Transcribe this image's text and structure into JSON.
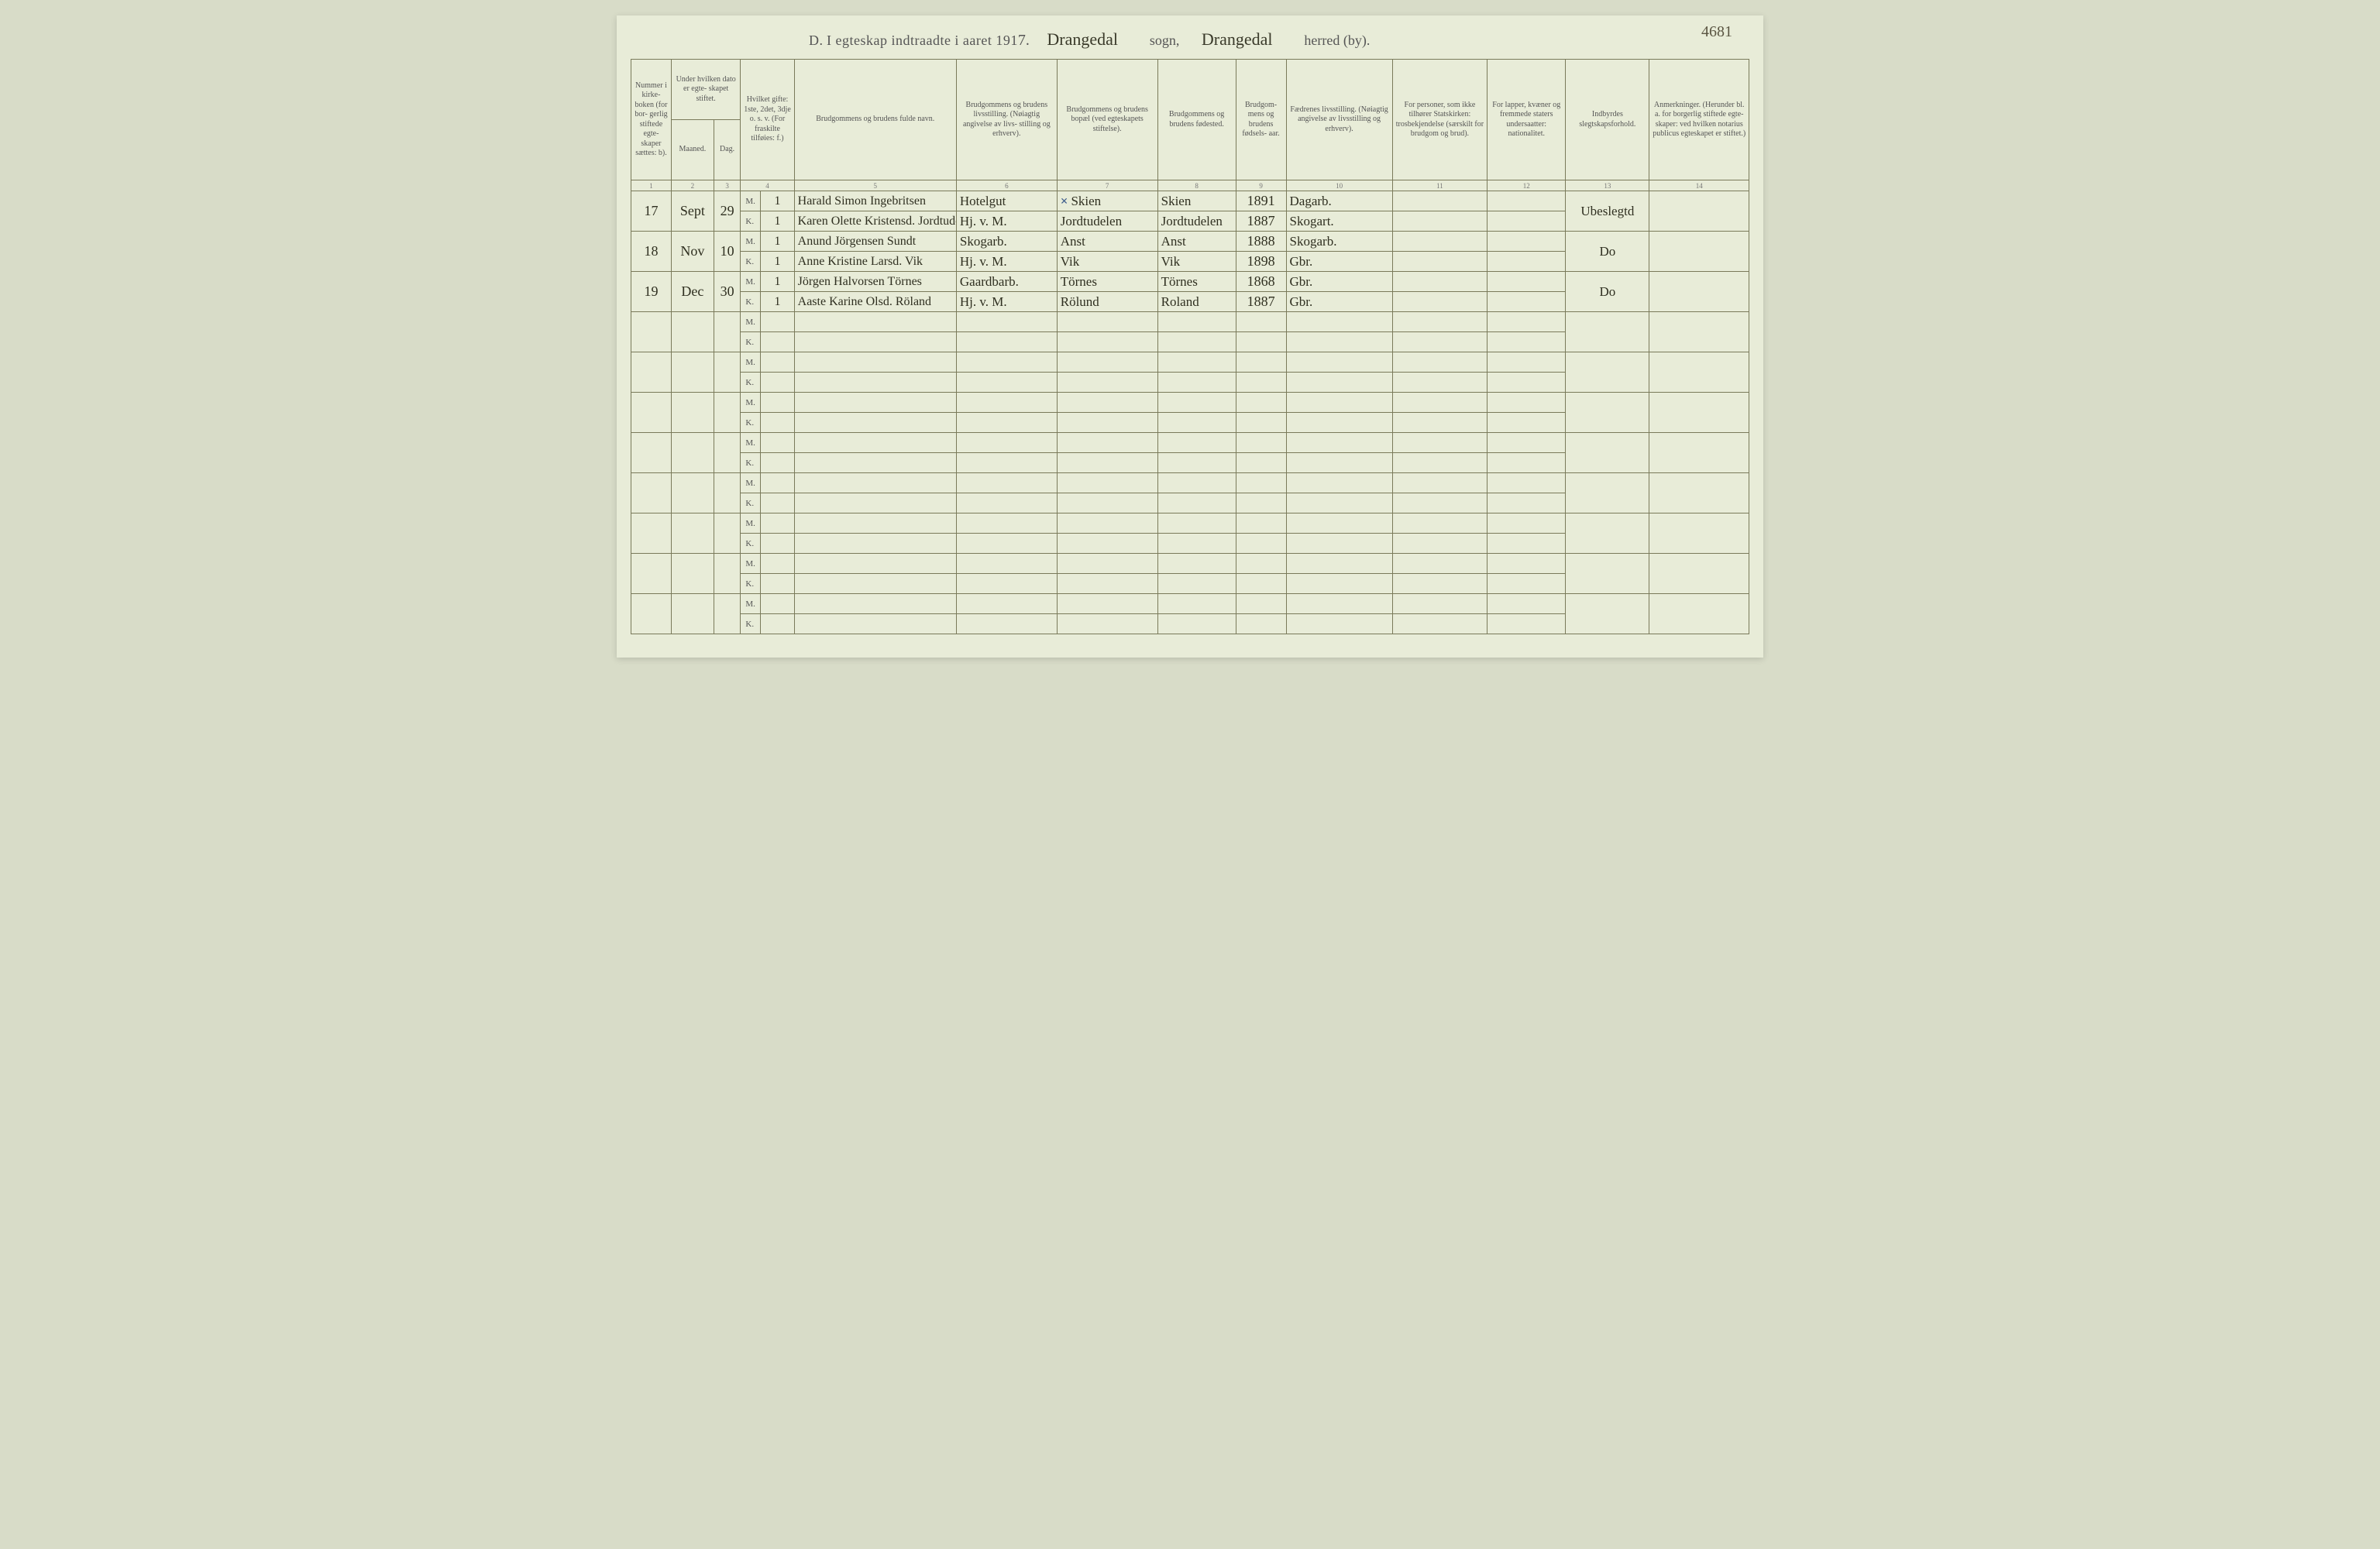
{
  "page_number_handwritten": "4681",
  "title": {
    "section_letter": "D.",
    "printed_text": "I egteskap indtraadte i aaret 191",
    "year_suffix": "7.",
    "sogn_script": "Drangedal",
    "sogn_label": "sogn,",
    "herred_script": "Drangedal",
    "herred_label": "herred (by)."
  },
  "columns": {
    "c1": "Nummer i kirke- boken (for bor- gerlig stiftede egte- skaper sættes: b).",
    "c2_group": "Under hvilken dato er egte- skapet stiftet.",
    "c2a": "Maaned.",
    "c2b": "Dag.",
    "c4": "Hvilket gifte: 1ste, 2det, 3dje o. s. v. (For fraskilte tilføies: f.)",
    "c5": "Brudgommens og brudens fulde navn.",
    "c6": "Brudgommens og brudens livsstilling. (Nøiagtig angivelse av livs- stilling og erhverv).",
    "c7": "Brudgommens og brudens bopæl (ved egteskapets stiftelse).",
    "c8": "Brudgommens og brudens fødested.",
    "c9": "Brudgom- mens og brudens fødsels- aar.",
    "c10": "Fædrenes livsstilling. (Nøiagtig angivelse av livsstilling og erhverv).",
    "c11": "For personer, som ikke tilhører Statskirken: trosbekjendelse (særskilt for brudgom og brud).",
    "c12": "For lapper, kvæner og fremmede staters undersaatter: nationalitet.",
    "c13": "Indbyrdes slegtskapsforhold.",
    "c14": "Anmerkninger. (Herunder bl. a. for borgerlig stiftede egte- skaper: ved hvilken notarius publicus egteskapet er stiftet.)"
  },
  "colnums": [
    "1",
    "2",
    "3",
    "4",
    "5",
    "6",
    "7",
    "8",
    "9",
    "10",
    "11",
    "12",
    "13",
    "14"
  ],
  "mk_labels": {
    "m": "M.",
    "k": "K."
  },
  "entries": [
    {
      "num": "17",
      "month": "Sept",
      "day": "29",
      "m": {
        "gifte": "1",
        "name": "Harald Simon Ingebritsen",
        "stilling": "Hotelgut",
        "bopel_mark": "×",
        "bopel": "Skien",
        "fodested": "Skien",
        "aar": "1891",
        "far": "Dagarb."
      },
      "k": {
        "gifte": "1",
        "name": "Karen Olette Kristensd. Jordtudelen",
        "stilling": "Hj. v. M.",
        "bopel": "Jordtudelen",
        "fodested": "Jordtudelen",
        "aar": "1887",
        "far": "Skogart."
      },
      "c13": "Ubeslegtd"
    },
    {
      "num": "18",
      "month": "Nov",
      "day": "10",
      "m": {
        "gifte": "1",
        "name": "Anund Jörgensen Sundt",
        "stilling": "Skogarb.",
        "bopel": "Anst",
        "fodested": "Anst",
        "aar": "1888",
        "far": "Skogarb."
      },
      "k": {
        "gifte": "1",
        "name": "Anne Kristine Larsd. Vik",
        "stilling": "Hj. v. M.",
        "bopel": "Vik",
        "fodested": "Vik",
        "aar": "1898",
        "far": "Gbr."
      },
      "c13": "Do"
    },
    {
      "num": "19",
      "month": "Dec",
      "day": "30",
      "m": {
        "gifte": "1",
        "name": "Jörgen Halvorsen Törnes",
        "stilling": "Gaardbarb.",
        "bopel": "Törnes",
        "fodested": "Törnes",
        "aar": "1868",
        "far": "Gbr."
      },
      "k": {
        "gifte": "1",
        "name": "Aaste Karine Olsd. Röland",
        "stilling": "Hj. v. M.",
        "bopel": "Rölund",
        "fodested": "Roland",
        "aar": "1887",
        "far": "Gbr."
      },
      "c13": "Do"
    }
  ],
  "empty_row_count": 8,
  "colors": {
    "page_bg": "#e8ecd8",
    "border": "#7a7a5a",
    "print_text": "#555555",
    "ink": "#2f2f20",
    "blue_mark": "#3a5a8a"
  },
  "typography": {
    "header_fontsize_pt": 10,
    "title_fontsize_pt": 18,
    "script_fontsize_pt": 17,
    "font_family_print": "Times New Roman",
    "font_family_script": "Brush Script MT"
  },
  "layout": {
    "total_columns_logical": 14,
    "rows_visible": 11,
    "aspect_ratio": "3072x2000"
  }
}
